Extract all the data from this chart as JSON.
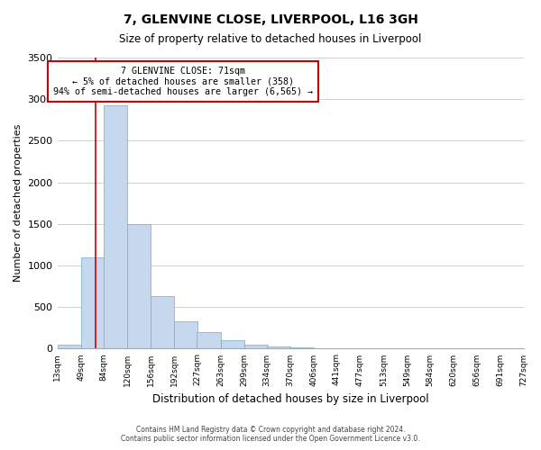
{
  "title": "7, GLENVINE CLOSE, LIVERPOOL, L16 3GH",
  "subtitle": "Size of property relative to detached houses in Liverpool",
  "xlabel": "Distribution of detached houses by size in Liverpool",
  "ylabel": "Number of detached properties",
  "bar_color": "#c5d8ed",
  "bar_edge_color": "#7aaac8",
  "bin_edges": [
    13,
    49,
    84,
    120,
    156,
    192,
    227,
    263,
    299,
    334,
    370,
    406,
    441,
    477,
    513,
    549,
    584,
    620,
    656,
    691,
    727
  ],
  "bar_heights": [
    50,
    1100,
    2930,
    1500,
    635,
    330,
    200,
    100,
    50,
    30,
    18,
    8,
    5,
    3,
    1,
    0,
    0,
    0,
    0,
    0
  ],
  "ylim": [
    0,
    3500
  ],
  "yticks": [
    0,
    500,
    1000,
    1500,
    2000,
    2500,
    3000,
    3500
  ],
  "property_line_x": 71,
  "property_line_color": "#cc0000",
  "annotation_text": "7 GLENVINE CLOSE: 71sqm\n← 5% of detached houses are smaller (358)\n94% of semi-detached houses are larger (6,565) →",
  "annotation_box_color": "#ffffff",
  "annotation_box_edge": "#cc0000",
  "footer_line1": "Contains HM Land Registry data © Crown copyright and database right 2024.",
  "footer_line2": "Contains public sector information licensed under the Open Government Licence v3.0.",
  "background_color": "#ffffff",
  "grid_color": "#d0d0d0",
  "xtick_labels": [
    "13sqm",
    "49sqm",
    "84sqm",
    "120sqm",
    "156sqm",
    "192sqm",
    "227sqm",
    "263sqm",
    "299sqm",
    "334sqm",
    "370sqm",
    "406sqm",
    "441sqm",
    "477sqm",
    "513sqm",
    "549sqm",
    "584sqm",
    "620sqm",
    "656sqm",
    "691sqm",
    "727sqm"
  ]
}
